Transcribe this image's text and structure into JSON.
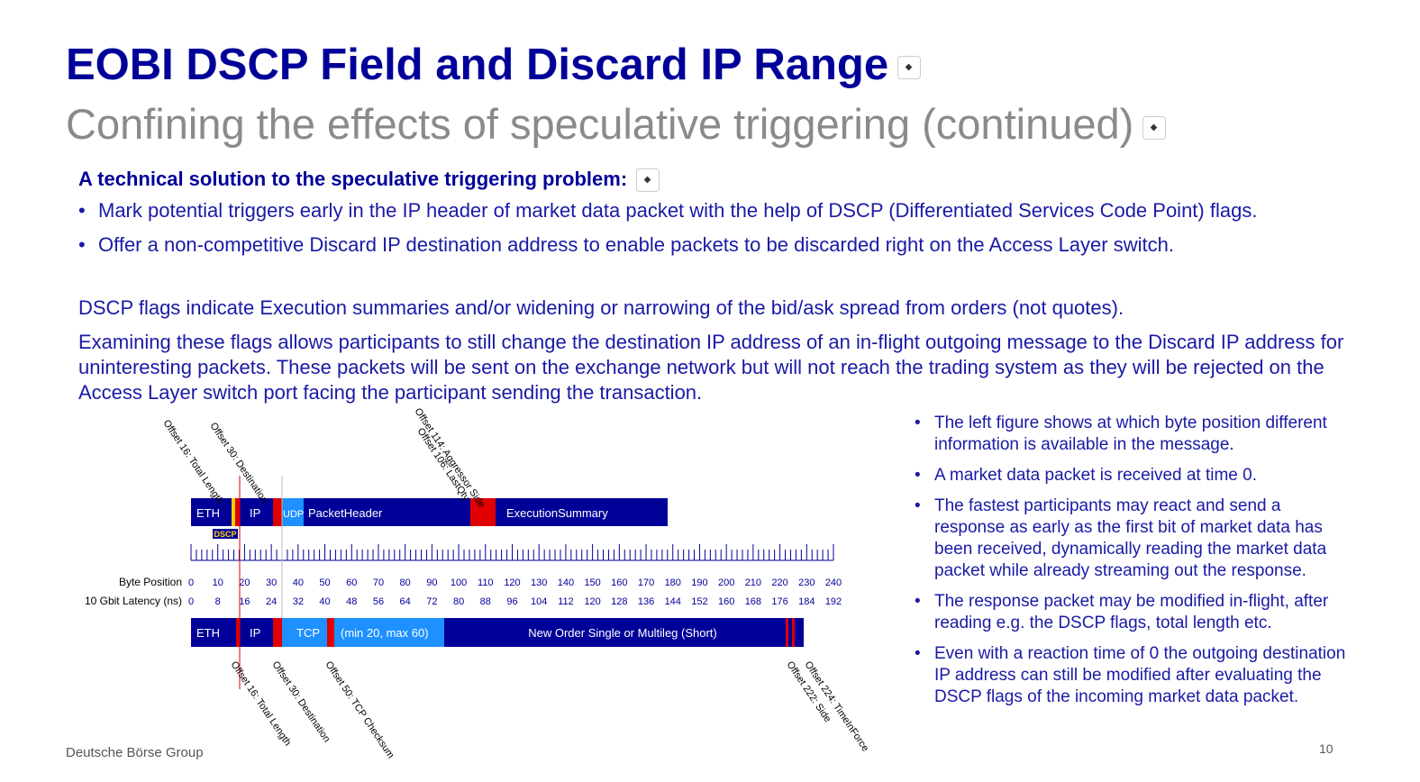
{
  "header": {
    "title": "EOBI DSCP Field and Discard IP Range",
    "subtitle": "Confining the effects of speculative triggering (continued)"
  },
  "intro": {
    "heading": "A technical solution to the speculative triggering problem:",
    "bullets": [
      "Mark potential triggers early in the IP header of market data packet with the help of DSCP (Differentiated Services Code Point)  flags.",
      "Offer a non-competitive Discard IP destination address to enable packets to be discarded right on the Access Layer switch."
    ]
  },
  "paragraphs": [
    "DSCP flags indicate Execution summaries and/or widening or narrowing of the bid/ask spread from orders (not quotes).",
    "Examining these flags allows participants to still change the destination IP address of an in-flight outgoing message to the Discard IP address for uninteresting packets. These packets will be sent on the exchange network but will not reach the trading system as they will be rejected on the Access Layer switch port facing the participant sending the transaction."
  ],
  "figure": {
    "top_offsets": [
      "Offset 16: Total Length",
      "Offset 30: Destination",
      "Offset 114: Aggressor Side",
      "Offset 106: LastQty"
    ],
    "top_blocks": [
      "ETH",
      "IP",
      "UDP",
      "PacketHeader",
      "ExecutionSummary"
    ],
    "dscp": "DSCP",
    "row_labels": [
      "Byte Position",
      "10 Gbit Latency (ns)"
    ],
    "byte_positions": [
      0,
      10,
      20,
      30,
      40,
      50,
      60,
      70,
      80,
      90,
      100,
      110,
      120,
      130,
      140,
      150,
      160,
      170,
      180,
      190,
      200,
      210,
      220,
      230,
      240
    ],
    "latencies": [
      0,
      8,
      16,
      24,
      32,
      40,
      48,
      56,
      64,
      72,
      80,
      88,
      96,
      104,
      112,
      120,
      128,
      136,
      144,
      152,
      160,
      168,
      176,
      184,
      192
    ],
    "bottom_blocks": [
      "ETH",
      "IP",
      "TCP",
      "(min 20, max 60)",
      "New Order Single or Multileg (Short)"
    ],
    "bottom_offsets": [
      "Offset 16: Total Length",
      "Offset 30: Destination",
      "Offset 50: TCP Checksum",
      "Offset 224: TimeInForce",
      "Offset 222: Side"
    ]
  },
  "side_bullets": [
    "The left figure shows at which byte position different information is available in the message.",
    "A market data packet is received at time 0.",
    "The fastest participants may react and send a response as early as the first bit of market data has been received, dynamically reading the market data packet while already streaming out the response.",
    "The response packet may be modified in-flight, after reading e.g. the DSCP flags, total length etc.",
    "Even with a reaction time of 0 the outgoing destination IP address can still be modified after evaluating the DSCP flags of the incoming market data packet."
  ],
  "footer": {
    "company": "Deutsche Börse Group",
    "page": "10"
  }
}
